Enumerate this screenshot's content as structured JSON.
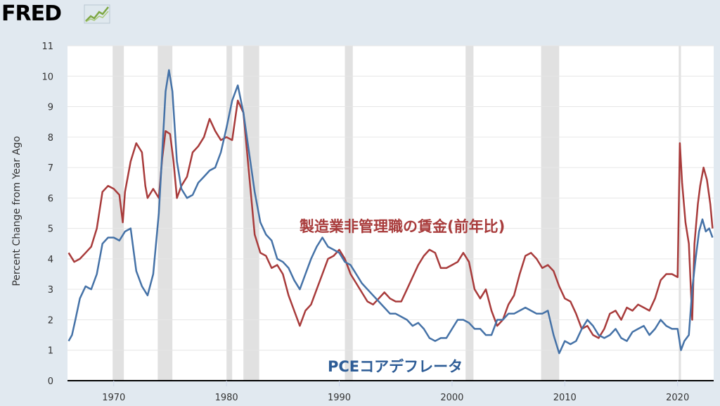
{
  "header": {
    "logo_text": "FRED",
    "logo_icon": "trend-chart-icon"
  },
  "chart_data": {
    "type": "line",
    "ylabel": "Percent Change from Year Ago",
    "xlim": [
      1965.9,
      2023.2
    ],
    "ylim": [
      0,
      11
    ],
    "yticks": [
      0,
      1,
      2,
      3,
      4,
      5,
      6,
      7,
      8,
      9,
      10,
      11
    ],
    "xticks": [
      1970,
      1980,
      1990,
      2000,
      2010,
      2020
    ],
    "grid": "horizontal",
    "colors": {
      "background": "#e1e9f0",
      "plot_area": "#ffffff",
      "recession": "#e1e1e1",
      "wages": "#a83b3b",
      "pce": "#4572a7"
    },
    "recessions": [
      [
        1969.9,
        1970.9
      ],
      [
        1973.9,
        1975.2
      ],
      [
        1980.0,
        1980.5
      ],
      [
        1981.5,
        1982.9
      ],
      [
        1990.5,
        1991.2
      ],
      [
        2001.2,
        2001.9
      ],
      [
        2007.9,
        2009.5
      ],
      [
        2020.1,
        2020.3
      ]
    ],
    "series": [
      {
        "annotation": "製造業非管理職の賃金(前年比)",
        "color": "#a83b3b",
        "points": [
          [
            1966.0,
            4.2
          ],
          [
            1966.5,
            3.9
          ],
          [
            1967.0,
            4.0
          ],
          [
            1967.5,
            4.2
          ],
          [
            1968.0,
            4.4
          ],
          [
            1968.5,
            5.0
          ],
          [
            1969.0,
            6.2
          ],
          [
            1969.5,
            6.4
          ],
          [
            1970.0,
            6.3
          ],
          [
            1970.5,
            6.1
          ],
          [
            1970.8,
            5.2
          ],
          [
            1971.0,
            6.2
          ],
          [
            1971.5,
            7.2
          ],
          [
            1972.0,
            7.8
          ],
          [
            1972.5,
            7.5
          ],
          [
            1972.8,
            6.4
          ],
          [
            1973.0,
            6.0
          ],
          [
            1973.5,
            6.3
          ],
          [
            1974.0,
            6.0
          ],
          [
            1974.3,
            7.3
          ],
          [
            1974.6,
            8.2
          ],
          [
            1975.0,
            8.1
          ],
          [
            1975.3,
            7.2
          ],
          [
            1975.6,
            6.0
          ],
          [
            1976.0,
            6.4
          ],
          [
            1976.5,
            6.7
          ],
          [
            1977.0,
            7.5
          ],
          [
            1977.5,
            7.7
          ],
          [
            1978.0,
            8.0
          ],
          [
            1978.5,
            8.6
          ],
          [
            1979.0,
            8.2
          ],
          [
            1979.5,
            7.9
          ],
          [
            1980.0,
            8.0
          ],
          [
            1980.5,
            7.9
          ],
          [
            1981.0,
            9.2
          ],
          [
            1981.5,
            8.8
          ],
          [
            1982.0,
            6.8
          ],
          [
            1982.5,
            4.8
          ],
          [
            1983.0,
            4.2
          ],
          [
            1983.5,
            4.1
          ],
          [
            1984.0,
            3.7
          ],
          [
            1984.5,
            3.8
          ],
          [
            1985.0,
            3.5
          ],
          [
            1985.5,
            2.8
          ],
          [
            1986.0,
            2.3
          ],
          [
            1986.5,
            1.8
          ],
          [
            1987.0,
            2.3
          ],
          [
            1987.5,
            2.5
          ],
          [
            1988.0,
            3.0
          ],
          [
            1988.5,
            3.5
          ],
          [
            1989.0,
            4.0
          ],
          [
            1989.5,
            4.1
          ],
          [
            1990.0,
            4.3
          ],
          [
            1990.5,
            4.0
          ],
          [
            1991.0,
            3.5
          ],
          [
            1991.5,
            3.2
          ],
          [
            1992.0,
            2.9
          ],
          [
            1992.5,
            2.6
          ],
          [
            1993.0,
            2.5
          ],
          [
            1993.5,
            2.7
          ],
          [
            1994.0,
            2.9
          ],
          [
            1994.5,
            2.7
          ],
          [
            1995.0,
            2.6
          ],
          [
            1995.5,
            2.6
          ],
          [
            1996.0,
            3.0
          ],
          [
            1996.5,
            3.4
          ],
          [
            1997.0,
            3.8
          ],
          [
            1997.5,
            4.1
          ],
          [
            1998.0,
            4.3
          ],
          [
            1998.5,
            4.2
          ],
          [
            1999.0,
            3.7
          ],
          [
            1999.5,
            3.7
          ],
          [
            2000.0,
            3.8
          ],
          [
            2000.5,
            3.9
          ],
          [
            2001.0,
            4.2
          ],
          [
            2001.5,
            3.9
          ],
          [
            2002.0,
            3.0
          ],
          [
            2002.5,
            2.7
          ],
          [
            2003.0,
            3.0
          ],
          [
            2003.5,
            2.3
          ],
          [
            2004.0,
            1.8
          ],
          [
            2004.5,
            2.0
          ],
          [
            2005.0,
            2.5
          ],
          [
            2005.5,
            2.8
          ],
          [
            2006.0,
            3.5
          ],
          [
            2006.5,
            4.1
          ],
          [
            2007.0,
            4.2
          ],
          [
            2007.5,
            4.0
          ],
          [
            2008.0,
            3.7
          ],
          [
            2008.5,
            3.8
          ],
          [
            2009.0,
            3.6
          ],
          [
            2009.5,
            3.1
          ],
          [
            2010.0,
            2.7
          ],
          [
            2010.5,
            2.6
          ],
          [
            2011.0,
            2.2
          ],
          [
            2011.5,
            1.7
          ],
          [
            2012.0,
            1.8
          ],
          [
            2012.5,
            1.5
          ],
          [
            2013.0,
            1.4
          ],
          [
            2013.5,
            1.7
          ],
          [
            2014.0,
            2.2
          ],
          [
            2014.5,
            2.3
          ],
          [
            2015.0,
            2.0
          ],
          [
            2015.5,
            2.4
          ],
          [
            2016.0,
            2.3
          ],
          [
            2016.5,
            2.5
          ],
          [
            2017.0,
            2.4
          ],
          [
            2017.5,
            2.3
          ],
          [
            2018.0,
            2.7
          ],
          [
            2018.5,
            3.3
          ],
          [
            2019.0,
            3.5
          ],
          [
            2019.5,
            3.5
          ],
          [
            2020.0,
            3.4
          ],
          [
            2020.2,
            7.8
          ],
          [
            2020.4,
            6.5
          ],
          [
            2020.7,
            5.2
          ],
          [
            2021.0,
            4.5
          ],
          [
            2021.3,
            2.0
          ],
          [
            2021.5,
            4.5
          ],
          [
            2021.8,
            5.8
          ],
          [
            2022.0,
            6.4
          ],
          [
            2022.3,
            7.0
          ],
          [
            2022.6,
            6.6
          ],
          [
            2022.9,
            5.8
          ],
          [
            2023.1,
            5.0
          ]
        ]
      },
      {
        "annotation": "PCEコアデフレータ",
        "color": "#4572a7",
        "points": [
          [
            1966.0,
            1.3
          ],
          [
            1966.3,
            1.5
          ],
          [
            1966.6,
            2.0
          ],
          [
            1967.0,
            2.7
          ],
          [
            1967.5,
            3.1
          ],
          [
            1968.0,
            3.0
          ],
          [
            1968.5,
            3.5
          ],
          [
            1969.0,
            4.5
          ],
          [
            1969.5,
            4.7
          ],
          [
            1970.0,
            4.7
          ],
          [
            1970.5,
            4.6
          ],
          [
            1971.0,
            4.9
          ],
          [
            1971.5,
            5.0
          ],
          [
            1972.0,
            3.6
          ],
          [
            1972.5,
            3.1
          ],
          [
            1973.0,
            2.8
          ],
          [
            1973.5,
            3.5
          ],
          [
            1974.0,
            5.5
          ],
          [
            1974.3,
            7.5
          ],
          [
            1974.6,
            9.5
          ],
          [
            1974.9,
            10.2
          ],
          [
            1975.2,
            9.5
          ],
          [
            1975.6,
            7.2
          ],
          [
            1976.0,
            6.3
          ],
          [
            1976.5,
            6.0
          ],
          [
            1977.0,
            6.1
          ],
          [
            1977.5,
            6.5
          ],
          [
            1978.0,
            6.7
          ],
          [
            1978.5,
            6.9
          ],
          [
            1979.0,
            7.0
          ],
          [
            1979.5,
            7.5
          ],
          [
            1980.0,
            8.3
          ],
          [
            1980.5,
            9.2
          ],
          [
            1981.0,
            9.7
          ],
          [
            1981.5,
            8.8
          ],
          [
            1982.0,
            7.5
          ],
          [
            1982.5,
            6.2
          ],
          [
            1983.0,
            5.2
          ],
          [
            1983.5,
            4.8
          ],
          [
            1984.0,
            4.6
          ],
          [
            1984.5,
            4.0
          ],
          [
            1985.0,
            3.9
          ],
          [
            1985.5,
            3.7
          ],
          [
            1986.0,
            3.3
          ],
          [
            1986.5,
            3.0
          ],
          [
            1987.0,
            3.5
          ],
          [
            1987.5,
            4.0
          ],
          [
            1988.0,
            4.4
          ],
          [
            1988.5,
            4.7
          ],
          [
            1989.0,
            4.4
          ],
          [
            1989.5,
            4.3
          ],
          [
            1990.0,
            4.2
          ],
          [
            1990.5,
            3.9
          ],
          [
            1991.0,
            3.8
          ],
          [
            1991.5,
            3.5
          ],
          [
            1992.0,
            3.2
          ],
          [
            1992.5,
            3.0
          ],
          [
            1993.0,
            2.8
          ],
          [
            1993.5,
            2.6
          ],
          [
            1994.0,
            2.4
          ],
          [
            1994.5,
            2.2
          ],
          [
            1995.0,
            2.2
          ],
          [
            1995.5,
            2.1
          ],
          [
            1996.0,
            2.0
          ],
          [
            1996.5,
            1.8
          ],
          [
            1997.0,
            1.9
          ],
          [
            1997.5,
            1.7
          ],
          [
            1998.0,
            1.4
          ],
          [
            1998.5,
            1.3
          ],
          [
            1999.0,
            1.4
          ],
          [
            1999.5,
            1.4
          ],
          [
            2000.0,
            1.7
          ],
          [
            2000.5,
            2.0
          ],
          [
            2001.0,
            2.0
          ],
          [
            2001.5,
            1.9
          ],
          [
            2002.0,
            1.7
          ],
          [
            2002.5,
            1.7
          ],
          [
            2003.0,
            1.5
          ],
          [
            2003.5,
            1.5
          ],
          [
            2004.0,
            2.0
          ],
          [
            2004.5,
            2.0
          ],
          [
            2005.0,
            2.2
          ],
          [
            2005.5,
            2.2
          ],
          [
            2006.0,
            2.3
          ],
          [
            2006.5,
            2.4
          ],
          [
            2007.0,
            2.3
          ],
          [
            2007.5,
            2.2
          ],
          [
            2008.0,
            2.2
          ],
          [
            2008.5,
            2.3
          ],
          [
            2009.0,
            1.5
          ],
          [
            2009.5,
            0.9
          ],
          [
            2010.0,
            1.3
          ],
          [
            2010.5,
            1.2
          ],
          [
            2011.0,
            1.3
          ],
          [
            2011.5,
            1.7
          ],
          [
            2012.0,
            2.0
          ],
          [
            2012.5,
            1.8
          ],
          [
            2013.0,
            1.5
          ],
          [
            2013.5,
            1.4
          ],
          [
            2014.0,
            1.5
          ],
          [
            2014.5,
            1.7
          ],
          [
            2015.0,
            1.4
          ],
          [
            2015.5,
            1.3
          ],
          [
            2016.0,
            1.6
          ],
          [
            2016.5,
            1.7
          ],
          [
            2017.0,
            1.8
          ],
          [
            2017.5,
            1.5
          ],
          [
            2018.0,
            1.7
          ],
          [
            2018.5,
            2.0
          ],
          [
            2019.0,
            1.8
          ],
          [
            2019.5,
            1.7
          ],
          [
            2020.0,
            1.7
          ],
          [
            2020.3,
            1.0
          ],
          [
            2020.6,
            1.3
          ],
          [
            2021.0,
            1.5
          ],
          [
            2021.3,
            3.0
          ],
          [
            2021.6,
            4.0
          ],
          [
            2021.9,
            4.9
          ],
          [
            2022.2,
            5.3
          ],
          [
            2022.5,
            4.9
          ],
          [
            2022.8,
            5.0
          ],
          [
            2023.1,
            4.7
          ]
        ]
      }
    ]
  }
}
